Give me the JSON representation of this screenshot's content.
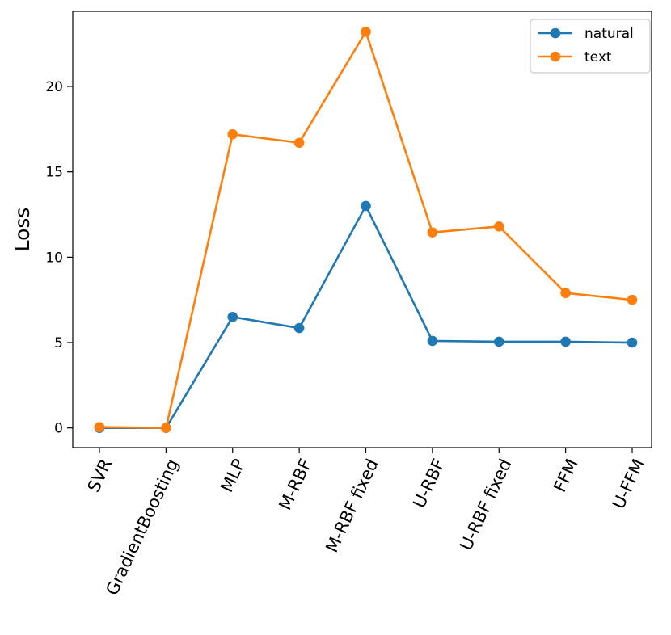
{
  "chart_data": {
    "type": "line",
    "title": "",
    "xlabel": "",
    "ylabel": "Loss",
    "categories": [
      "SVR",
      "GradientBoosting",
      "MLP",
      "M-RBF",
      "M-RBF fixed",
      "U-RBF",
      "U-RBF fixed",
      "FFM",
      "U-FFM"
    ],
    "yticks": [
      0,
      5,
      10,
      15,
      20
    ],
    "ylim": [
      -1.15,
      24.4
    ],
    "grid": false,
    "legend_position": "top-right",
    "series": [
      {
        "name": "natural",
        "color": "#1f77b4",
        "values": [
          0.0,
          0.0,
          6.5,
          5.85,
          13.0,
          5.1,
          5.05,
          5.05,
          5.0
        ]
      },
      {
        "name": "text",
        "color": "#ff7f0e",
        "values": [
          0.05,
          0.0,
          17.2,
          16.7,
          23.2,
          11.45,
          11.8,
          7.9,
          7.5
        ]
      }
    ]
  }
}
